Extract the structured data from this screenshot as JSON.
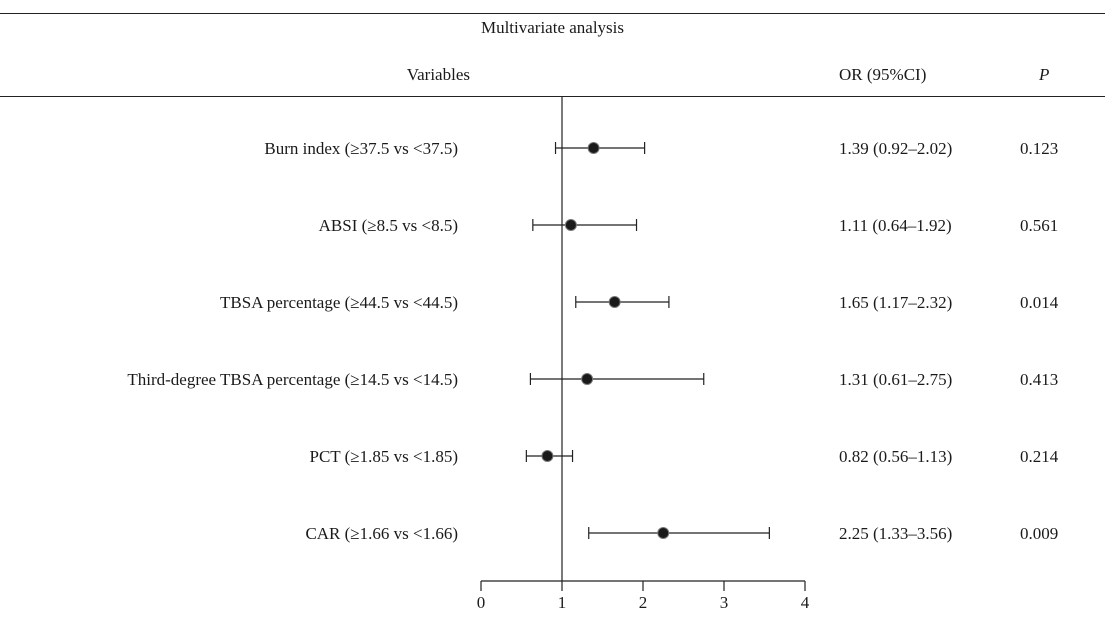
{
  "header": {
    "title": "Multivariate analysis",
    "col_variables": "Variables",
    "col_or": "OR (95%CI)",
    "col_p": "P"
  },
  "chart_data": {
    "type": "forest",
    "reference_line": 1,
    "xlim": [
      0,
      4
    ],
    "x_ticks": [
      "0",
      "1",
      "2",
      "3",
      "4"
    ],
    "rows": [
      {
        "label": "Burn index (≥37.5 vs <37.5)",
        "or": 1.39,
        "lo": 0.92,
        "hi": 2.02,
        "or_text": "1.39 (0.92–2.02)",
        "p": "0.123"
      },
      {
        "label": "ABSI (≥8.5 vs <8.5)",
        "or": 1.11,
        "lo": 0.64,
        "hi": 1.92,
        "or_text": "1.11 (0.64–1.92)",
        "p": "0.561"
      },
      {
        "label": "TBSA percentage (≥44.5 vs <44.5)",
        "or": 1.65,
        "lo": 1.17,
        "hi": 2.32,
        "or_text": "1.65 (1.17–2.32)",
        "p": "0.014"
      },
      {
        "label": "Third-degree TBSA percentage (≥14.5 vs <14.5)",
        "or": 1.31,
        "lo": 0.61,
        "hi": 2.75,
        "or_text": "1.31 (0.61–2.75)",
        "p": "0.413"
      },
      {
        "label": "PCT (≥1.85 vs <1.85)",
        "or": 0.82,
        "lo": 0.56,
        "hi": 1.13,
        "or_text": "0.82 (0.56–1.13)",
        "p": "0.214"
      },
      {
        "label": "CAR (≥1.66 vs <1.66)",
        "or": 2.25,
        "lo": 1.33,
        "hi": 3.56,
        "or_text": "2.25 (1.33–3.56)",
        "p": "0.009"
      }
    ]
  }
}
